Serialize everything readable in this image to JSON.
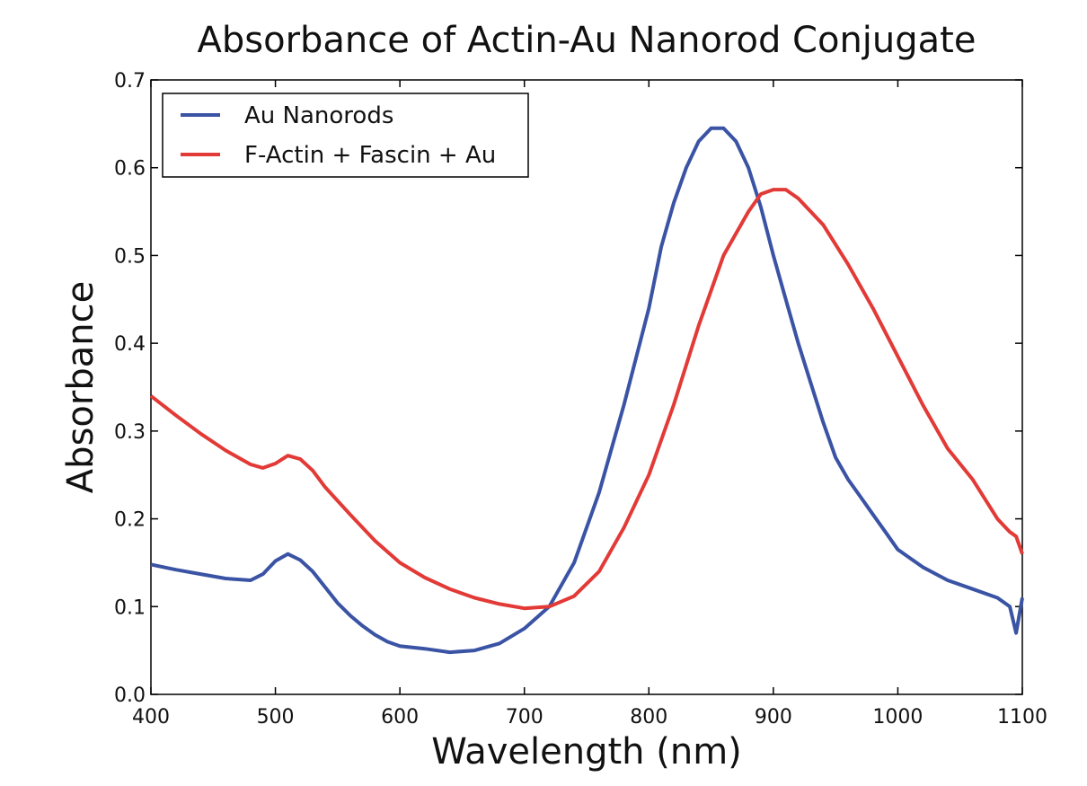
{
  "chart_data": {
    "type": "line",
    "title": "Absorbance of Actin-Au Nanorod Conjugate",
    "xlabel": "Wavelength (nm)",
    "ylabel": "Absorbance",
    "xlim": [
      400,
      1100
    ],
    "ylim": [
      0.0,
      0.7
    ],
    "xticks": [
      400,
      500,
      600,
      700,
      800,
      900,
      1000,
      1100
    ],
    "xtick_labels": [
      "400",
      "500",
      "600",
      "700",
      "800",
      "900",
      "1000",
      "1100"
    ],
    "yticks": [
      0.0,
      0.1,
      0.2,
      0.3,
      0.4,
      0.5,
      0.6,
      0.7
    ],
    "ytick_labels": [
      "0.0",
      "0.1",
      "0.2",
      "0.3",
      "0.4",
      "0.5",
      "0.6",
      "0.7"
    ],
    "grid": false,
    "legend_position": "top-left",
    "series": [
      {
        "name": "Au Nanorods",
        "color": "#3a53a4",
        "x": [
          400,
          420,
          440,
          460,
          480,
          490,
          500,
          510,
          520,
          530,
          540,
          550,
          560,
          570,
          580,
          590,
          600,
          620,
          640,
          660,
          680,
          700,
          720,
          740,
          760,
          780,
          800,
          810,
          820,
          830,
          840,
          850,
          860,
          870,
          880,
          890,
          900,
          910,
          920,
          930,
          940,
          950,
          960,
          970,
          980,
          990,
          1000,
          1020,
          1040,
          1060,
          1080,
          1090,
          1095,
          1100
        ],
        "y": [
          0.148,
          0.142,
          0.137,
          0.132,
          0.13,
          0.137,
          0.152,
          0.16,
          0.153,
          0.14,
          0.122,
          0.104,
          0.09,
          0.078,
          0.068,
          0.06,
          0.055,
          0.052,
          0.048,
          0.05,
          0.058,
          0.075,
          0.1,
          0.15,
          0.23,
          0.33,
          0.44,
          0.51,
          0.56,
          0.6,
          0.63,
          0.645,
          0.645,
          0.63,
          0.6,
          0.555,
          0.5,
          0.45,
          0.4,
          0.355,
          0.31,
          0.27,
          0.245,
          0.225,
          0.205,
          0.185,
          0.165,
          0.145,
          0.13,
          0.12,
          0.11,
          0.1,
          0.07,
          0.11
        ]
      },
      {
        "name": "F-Actin + Fascin + Au",
        "color": "#e23a36",
        "x": [
          400,
          420,
          440,
          460,
          480,
          490,
          500,
          510,
          520,
          530,
          540,
          560,
          580,
          600,
          620,
          640,
          660,
          680,
          700,
          720,
          740,
          760,
          780,
          800,
          820,
          840,
          860,
          880,
          890,
          900,
          910,
          920,
          940,
          960,
          980,
          1000,
          1020,
          1040,
          1060,
          1080,
          1090,
          1095,
          1100
        ],
        "y": [
          0.34,
          0.318,
          0.297,
          0.278,
          0.262,
          0.258,
          0.263,
          0.272,
          0.268,
          0.255,
          0.236,
          0.205,
          0.175,
          0.15,
          0.133,
          0.12,
          0.11,
          0.103,
          0.098,
          0.1,
          0.112,
          0.14,
          0.19,
          0.25,
          0.33,
          0.42,
          0.5,
          0.55,
          0.57,
          0.575,
          0.575,
          0.565,
          0.535,
          0.49,
          0.44,
          0.385,
          0.33,
          0.28,
          0.245,
          0.2,
          0.185,
          0.18,
          0.16
        ]
      }
    ]
  }
}
